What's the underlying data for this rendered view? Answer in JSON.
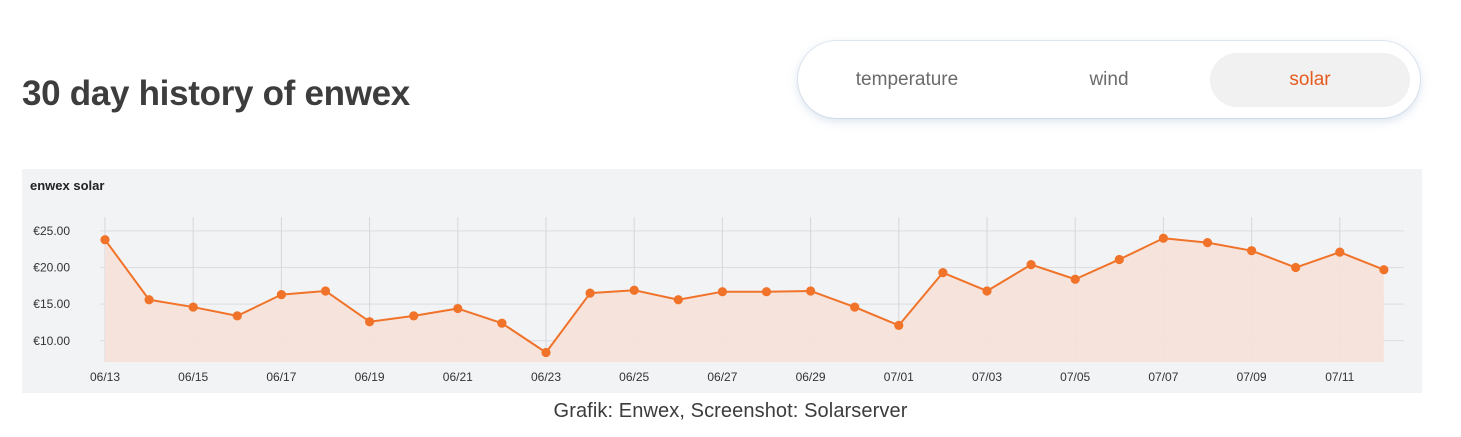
{
  "header": {
    "title": "30 day history of enwex"
  },
  "tabs": [
    {
      "label": "temperature",
      "active": false
    },
    {
      "label": "wind",
      "active": false
    },
    {
      "label": "solar",
      "active": true
    }
  ],
  "caption": "Grafik: Enwex, Screenshot: Solarserver",
  "colors": {
    "accent": "#f07329",
    "area": "#f6e3da",
    "active_tab_text": "#e55b1f",
    "panel_bg": "#f2f3f5"
  },
  "chart_data": {
    "type": "area",
    "title": "enwex solar",
    "xlabel": "",
    "ylabel": "",
    "x": [
      "06/13",
      "06/14",
      "06/15",
      "06/16",
      "06/17",
      "06/18",
      "06/19",
      "06/20",
      "06/21",
      "06/22",
      "06/23",
      "06/24",
      "06/25",
      "06/26",
      "06/27",
      "06/28",
      "06/29",
      "06/30",
      "07/01",
      "07/02",
      "07/03",
      "07/04",
      "07/05",
      "07/06",
      "07/07",
      "07/08",
      "07/09",
      "07/10",
      "07/11",
      "07/12"
    ],
    "x_tick_labels": [
      "06/13",
      "06/15",
      "06/17",
      "06/19",
      "06/21",
      "06/23",
      "06/25",
      "06/27",
      "06/29",
      "07/01",
      "07/03",
      "07/05",
      "07/07",
      "07/09",
      "07/11"
    ],
    "series": [
      {
        "values": [
          23.8,
          15.6,
          14.6,
          13.4,
          16.3,
          16.8,
          12.6,
          13.4,
          14.4,
          12.4,
          8.4,
          16.5,
          16.9,
          15.6,
          16.7,
          16.7,
          16.8,
          14.6,
          12.1,
          19.3,
          16.8,
          20.4,
          18.4,
          21.1,
          24.0,
          23.4,
          22.3,
          20.0,
          22.1,
          19.7
        ]
      }
    ],
    "y_ticks": [
      10,
      15,
      20,
      25
    ],
    "y_tick_labels": [
      "€10.00",
      "€15.00",
      "€20.00",
      "€25.00"
    ],
    "ylim": [
      7.1,
      26.9
    ],
    "grid": true,
    "legend": "none"
  }
}
